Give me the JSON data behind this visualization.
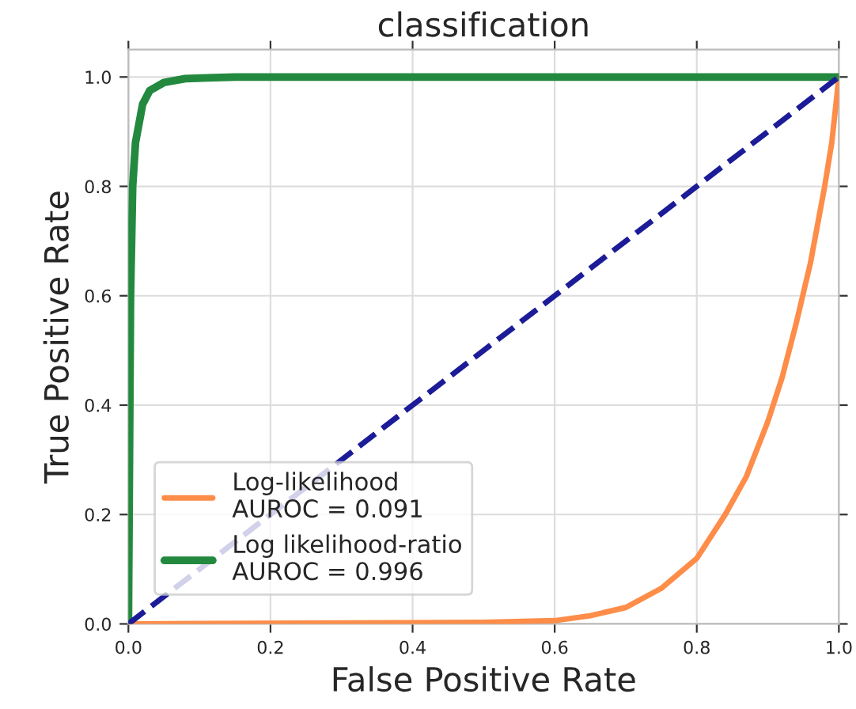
{
  "chart_data": {
    "type": "line",
    "title": "classification",
    "xlabel": "False Positive Rate",
    "ylabel": "True Positive Rate",
    "xlim": [
      0,
      1
    ],
    "ylim": [
      0,
      1.05
    ],
    "xticks": [
      {
        "value": 0,
        "label": "0.0"
      },
      {
        "value": 0.2,
        "label": "0.2"
      },
      {
        "value": 0.4,
        "label": "0.4"
      },
      {
        "value": 0.6,
        "label": "0.6"
      },
      {
        "value": 0.8,
        "label": "0.8"
      },
      {
        "value": 1,
        "label": "1.0"
      }
    ],
    "yticks": [
      {
        "value": 0,
        "label": "0.0"
      },
      {
        "value": 0.2,
        "label": "0.2"
      },
      {
        "value": 0.4,
        "label": "0.4"
      },
      {
        "value": 0.6,
        "label": "0.6"
      },
      {
        "value": 0.8,
        "label": "0.8"
      },
      {
        "value": 1,
        "label": "1.0"
      }
    ],
    "grid": true,
    "legend": "bottom left",
    "series": [
      {
        "x": [
          0,
          0.5,
          0.6,
          0.65,
          0.7,
          0.75,
          0.8,
          0.84,
          0.87,
          0.9,
          0.92,
          0.94,
          0.96,
          0.98,
          0.99,
          1
        ],
        "values": [
          0,
          0.003,
          0.006,
          0.015,
          0.03,
          0.065,
          0.12,
          0.2,
          0.27,
          0.37,
          0.45,
          0.55,
          0.66,
          0.8,
          0.88,
          1
        ],
        "name": "Log-likelihood\nAUROC = 0.091",
        "color": "#fd8d49"
      },
      {
        "x": [
          0,
          0.003,
          0.006,
          0.01,
          0.02,
          0.03,
          0.05,
          0.08,
          0.15,
          1
        ],
        "values": [
          0,
          0.6,
          0.8,
          0.88,
          0.95,
          0.975,
          0.99,
          0.997,
          1,
          1
        ],
        "name": "Log likelihood-ratio\nAUROC = 0.996",
        "color": "#23893f"
      },
      {
        "x": [
          0,
          1
        ],
        "values": [
          0,
          1
        ],
        "color": "#1c1c98",
        "line_style": "dashed"
      }
    ]
  }
}
